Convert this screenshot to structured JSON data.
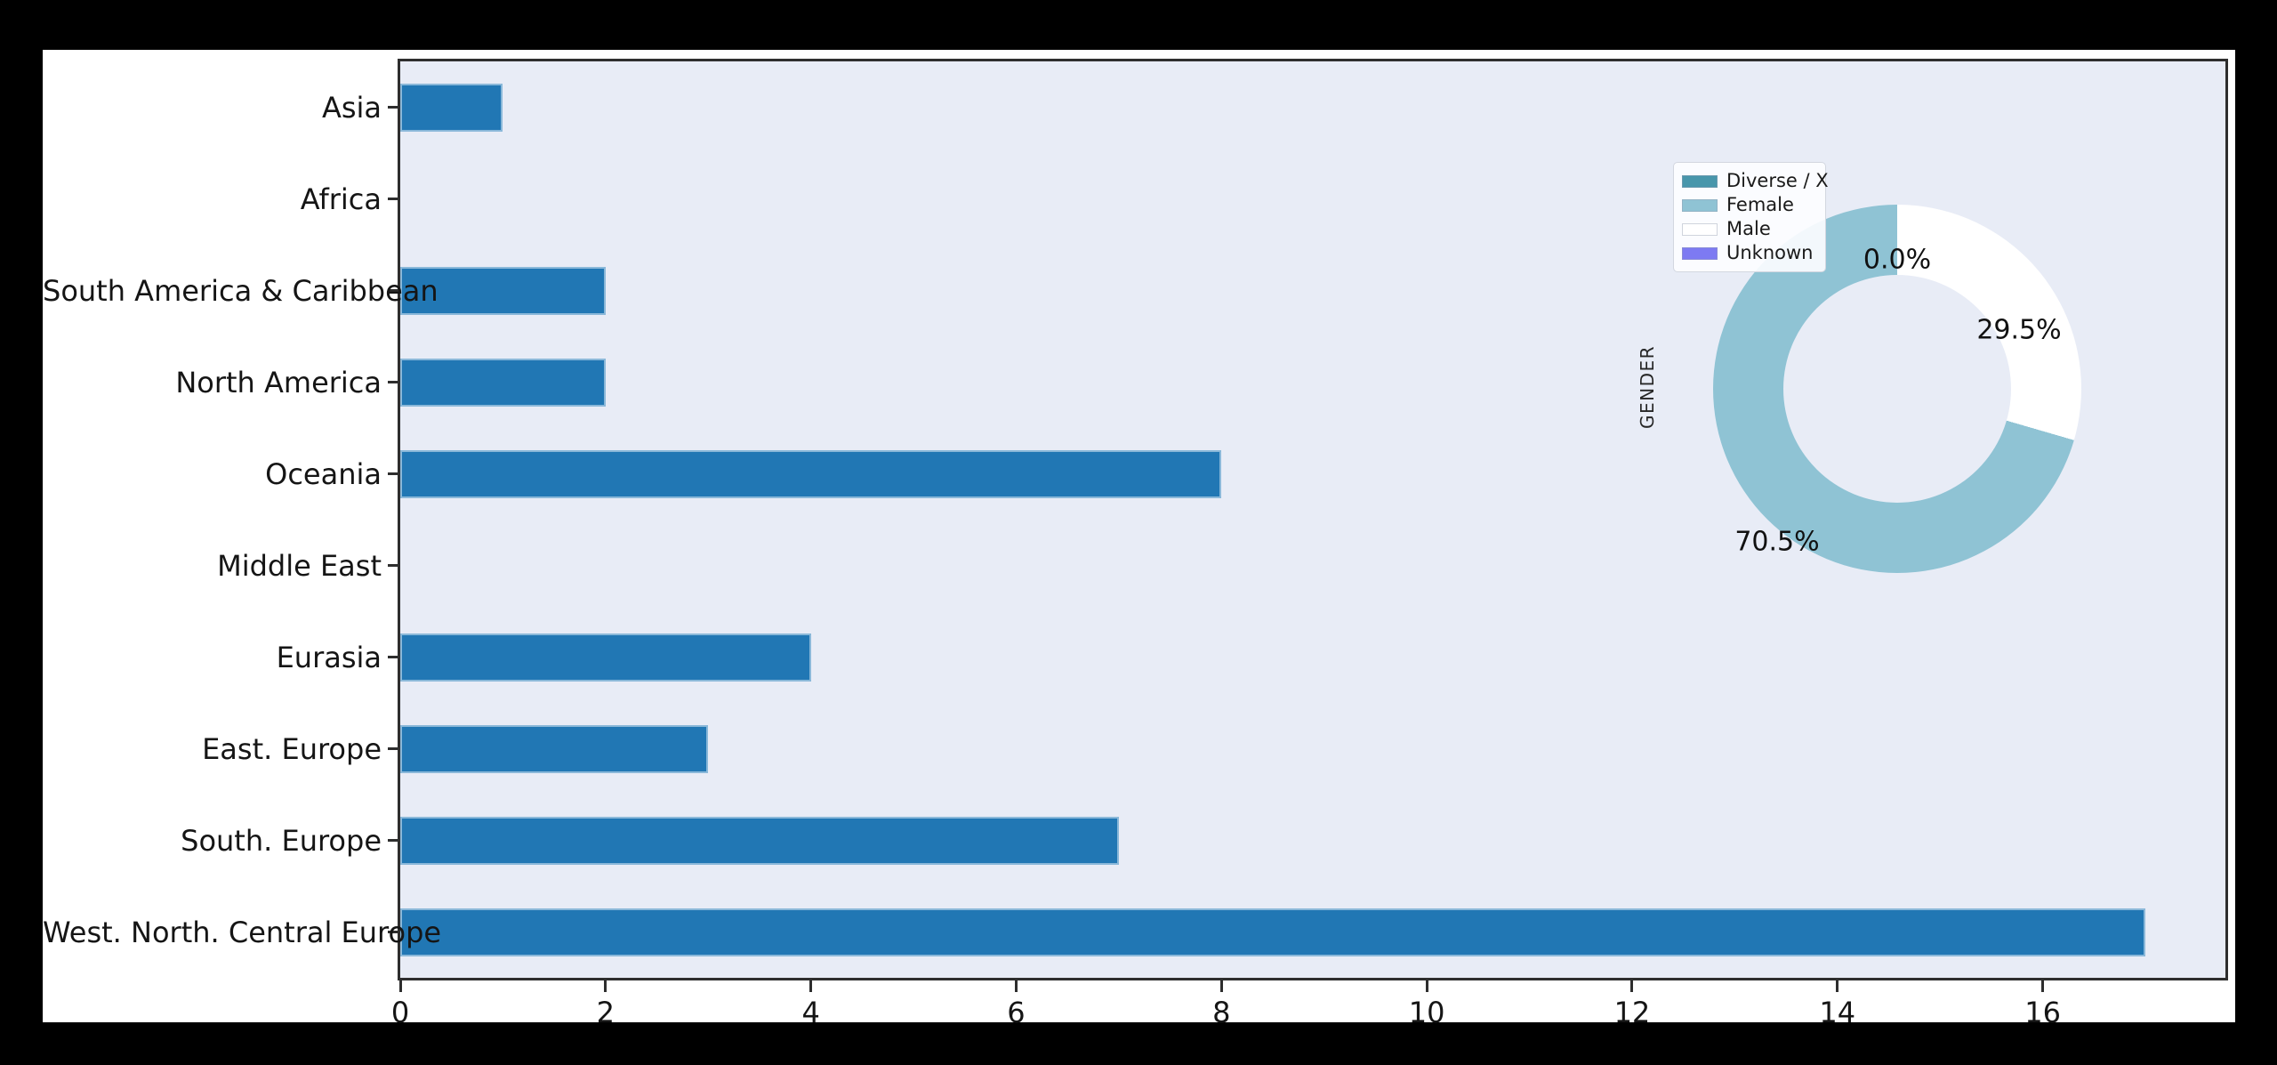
{
  "canvas": {
    "outer_bg": "#000000",
    "figure_bg": "#ffffff",
    "plot_bg": "#e8ecf6",
    "spine_color": "#2e2e2e"
  },
  "chart_data": [
    {
      "type": "bar",
      "orientation": "horizontal",
      "title": "",
      "xlabel": "",
      "ylabel": "",
      "categories": [
        "Asia",
        "Africa",
        "South America & Caribbean",
        "North America",
        "Oceania",
        "Middle East",
        "Eurasia",
        "East. Europe",
        "South. Europe",
        "West. North. Central Europe"
      ],
      "values": [
        1,
        0,
        2,
        2,
        8,
        0,
        4,
        3,
        7,
        17
      ],
      "xticks": [
        "0",
        "2",
        "4",
        "6",
        "8",
        "10",
        "12",
        "14",
        "16"
      ],
      "xtick_values": [
        0,
        2,
        4,
        6,
        8,
        10,
        12,
        14,
        16
      ],
      "xlim": [
        0,
        17.78
      ],
      "bar_color": "#2177b4",
      "grid": false,
      "legend_position": "none"
    },
    {
      "type": "donut",
      "axis_label": "GENDER",
      "start_angle_deg": 90,
      "direction": "counterclockwise",
      "slices": [
        {
          "label": "Diverse / X",
          "pct": 0.0,
          "color": "#4896ab"
        },
        {
          "label": "Female",
          "pct": 70.5,
          "color": "#8fc3d4"
        },
        {
          "label": "Male",
          "pct": 29.5,
          "color": "#ffffff"
        },
        {
          "label": "Unknown",
          "pct": 0.0,
          "color": "#7d7af2"
        }
      ],
      "pct_labels": [
        "0.0%",
        "29.5%",
        "70.5%"
      ],
      "legend_position": "upper left",
      "hole_ratio": 0.62
    }
  ]
}
